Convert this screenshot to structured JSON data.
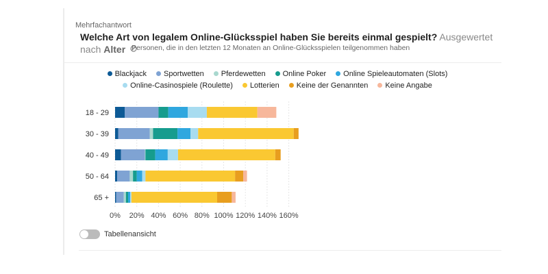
{
  "header": {
    "overline": "Mehrfachantwort",
    "question": "Welche Art von legalem Online-Glücksspiel haben Sie bereits einmal gespielt?",
    "evaluated_prefix": "Ausgewertet nach",
    "evaluated_by": "Alter",
    "population": "Personen, die in den letzten 12 Monaten an Online-Glücksspielen teilgenommen haben"
  },
  "toggle": {
    "label": "Tabellenansicht"
  },
  "chart_data": {
    "type": "bar",
    "orientation": "horizontal",
    "stacked": true,
    "categories": [
      "18 - 29",
      "30 - 39",
      "40 - 49",
      "50 - 64",
      "65 +"
    ],
    "series": [
      {
        "name": "Blackjack",
        "color": "#0d5a96",
        "values": [
          9,
          3,
          5.5,
          2,
          1
        ]
      },
      {
        "name": "Sportwetten",
        "color": "#7fa3d3",
        "values": [
          31,
          29,
          22,
          11.5,
          7
        ]
      },
      {
        "name": "Pferdewetten",
        "color": "#a9d8cf",
        "values": [
          0,
          3,
          0.5,
          3,
          2
        ]
      },
      {
        "name": "Online Poker",
        "color": "#169c8e",
        "values": [
          9,
          22.5,
          9,
          3.5,
          2
        ]
      },
      {
        "name": "Online Spieleautomaten (Slots)",
        "color": "#2fa7df",
        "values": [
          18,
          12,
          11.5,
          5,
          2
        ]
      },
      {
        "name": "Online-Casinospiele (Roulette)",
        "color": "#a8dcf0",
        "values": [
          17.5,
          7,
          9.5,
          3,
          1
        ]
      },
      {
        "name": "Lotterien",
        "color": "#fac832",
        "values": [
          46.5,
          88,
          89.5,
          82.5,
          79
        ]
      },
      {
        "name": "Keine der Genannten",
        "color": "#e89e1f",
        "values": [
          0,
          4.5,
          5,
          7.5,
          13.5
        ]
      },
      {
        "name": "Keine Angabe",
        "color": "#f7b79b",
        "values": [
          17.5,
          0,
          0,
          3.5,
          3.5
        ]
      }
    ],
    "xlim": [
      0,
      170
    ],
    "xticks": [
      0,
      20,
      40,
      60,
      80,
      100,
      120,
      140,
      160
    ],
    "xtick_labels": [
      "0%",
      "20%",
      "40%",
      "60%",
      "80%",
      "100%",
      "120%",
      "140%",
      "160%"
    ],
    "legend_position": "top-center",
    "grid": "vertical"
  }
}
